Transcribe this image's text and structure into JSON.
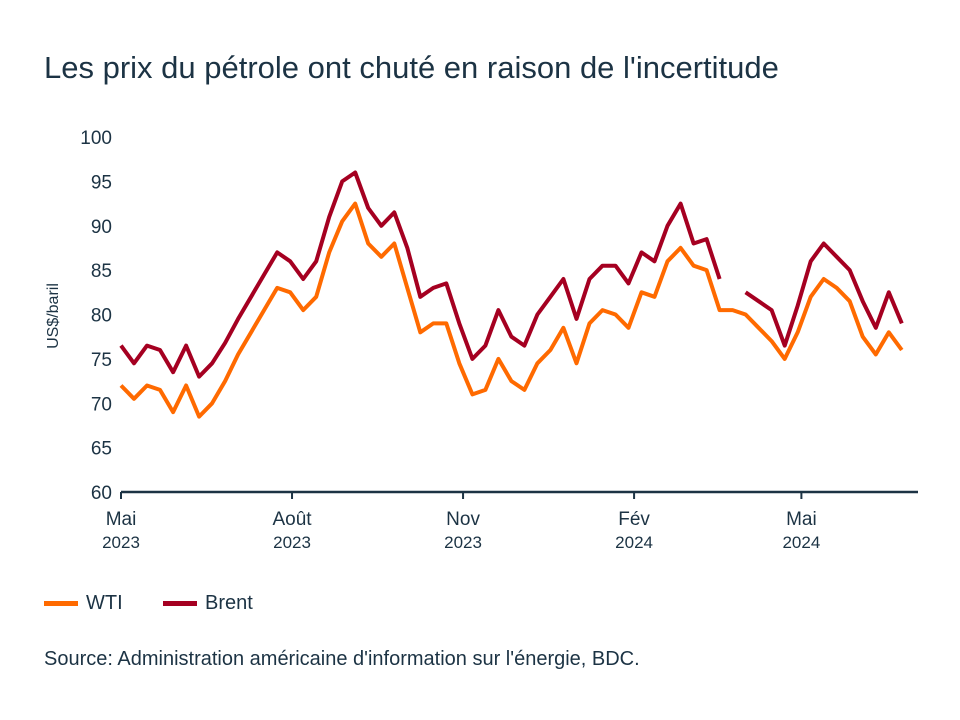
{
  "chart_data": {
    "type": "line",
    "title": "Les prix du pétrole ont chuté en raison de l'incertitude",
    "xlabel": "",
    "ylabel": "US$/baril",
    "ylim": [
      60,
      100
    ],
    "yticks": [
      60,
      65,
      70,
      75,
      80,
      85,
      90,
      95,
      100
    ],
    "xticks": [
      {
        "date": "2023-05-01",
        "month": "Mai",
        "year": "2023"
      },
      {
        "date": "2023-08-01",
        "month": "Août",
        "year": "2023"
      },
      {
        "date": "2023-11-01",
        "month": "Nov",
        "year": "2023"
      },
      {
        "date": "2024-02-01",
        "month": "Fév",
        "year": "2024"
      },
      {
        "date": "2024-05-01",
        "month": "Mai",
        "year": "2024"
      }
    ],
    "grid": false,
    "legend_position": "bottom-left",
    "x": [
      "2023-05-01",
      "2023-05-08",
      "2023-05-15",
      "2023-05-22",
      "2023-05-29",
      "2023-06-05",
      "2023-06-12",
      "2023-06-19",
      "2023-06-26",
      "2023-07-03",
      "2023-07-10",
      "2023-07-17",
      "2023-07-24",
      "2023-07-31",
      "2023-08-07",
      "2023-08-14",
      "2023-08-21",
      "2023-08-28",
      "2023-09-04",
      "2023-09-11",
      "2023-09-18",
      "2023-09-25",
      "2023-10-02",
      "2023-10-09",
      "2023-10-16",
      "2023-10-23",
      "2023-10-30",
      "2023-11-06",
      "2023-11-13",
      "2023-11-20",
      "2023-11-27",
      "2023-12-04",
      "2023-12-11",
      "2023-12-18",
      "2023-12-25",
      "2024-01-01",
      "2024-01-08",
      "2024-01-15",
      "2024-01-22",
      "2024-01-29",
      "2024-02-05",
      "2024-02-12",
      "2024-02-19",
      "2024-02-26",
      "2024-03-04",
      "2024-03-11",
      "2024-03-18",
      "2024-03-25",
      "2024-04-01",
      "2024-04-08",
      "2024-04-15",
      "2024-04-22",
      "2024-04-29",
      "2024-05-06",
      "2024-05-13",
      "2024-05-20",
      "2024-05-27",
      "2024-06-03",
      "2024-06-10",
      "2024-06-17",
      "2024-06-24"
    ],
    "series": [
      {
        "name": "WTI",
        "color": "#ff6a00",
        "values": [
          72,
          70.5,
          72,
          71.5,
          69,
          72,
          68.5,
          70,
          72.5,
          75.5,
          78,
          80.5,
          83,
          82.5,
          80.5,
          82,
          87,
          90.5,
          92.5,
          88,
          86.5,
          88,
          83,
          78,
          79,
          79,
          74.5,
          71,
          71.5,
          75,
          72.5,
          71.5,
          74.5,
          76,
          78.5,
          74.5,
          79,
          80.5,
          80,
          78.5,
          82.5,
          82,
          86,
          87.5,
          85.5,
          85,
          80.5,
          80.5,
          80,
          78.5,
          77,
          75,
          78,
          82,
          84,
          83,
          81.5,
          77.5,
          75.5,
          78,
          76
        ]
      },
      {
        "name": "Brent",
        "color": "#a50021",
        "values": [
          76.5,
          74.5,
          76.5,
          76,
          73.5,
          76.5,
          73,
          74.5,
          76.8,
          79.5,
          82,
          84.5,
          87,
          86,
          84,
          86,
          91,
          95,
          96,
          92,
          90,
          91.5,
          87.5,
          82,
          83,
          83.5,
          79,
          75,
          76.5,
          80.5,
          77.5,
          76.5,
          80,
          82,
          84,
          79.5,
          84,
          85.5,
          85.5,
          83.5,
          87,
          86,
          90,
          92.5,
          88,
          88.5,
          84,
          null,
          82.5,
          81.5,
          80.5,
          76.5,
          81,
          86,
          88,
          86.5,
          85,
          81.5,
          78.5,
          82.5,
          79
        ]
      }
    ],
    "source": "Source: Administration américaine d'information sur l'énergie, BDC."
  }
}
